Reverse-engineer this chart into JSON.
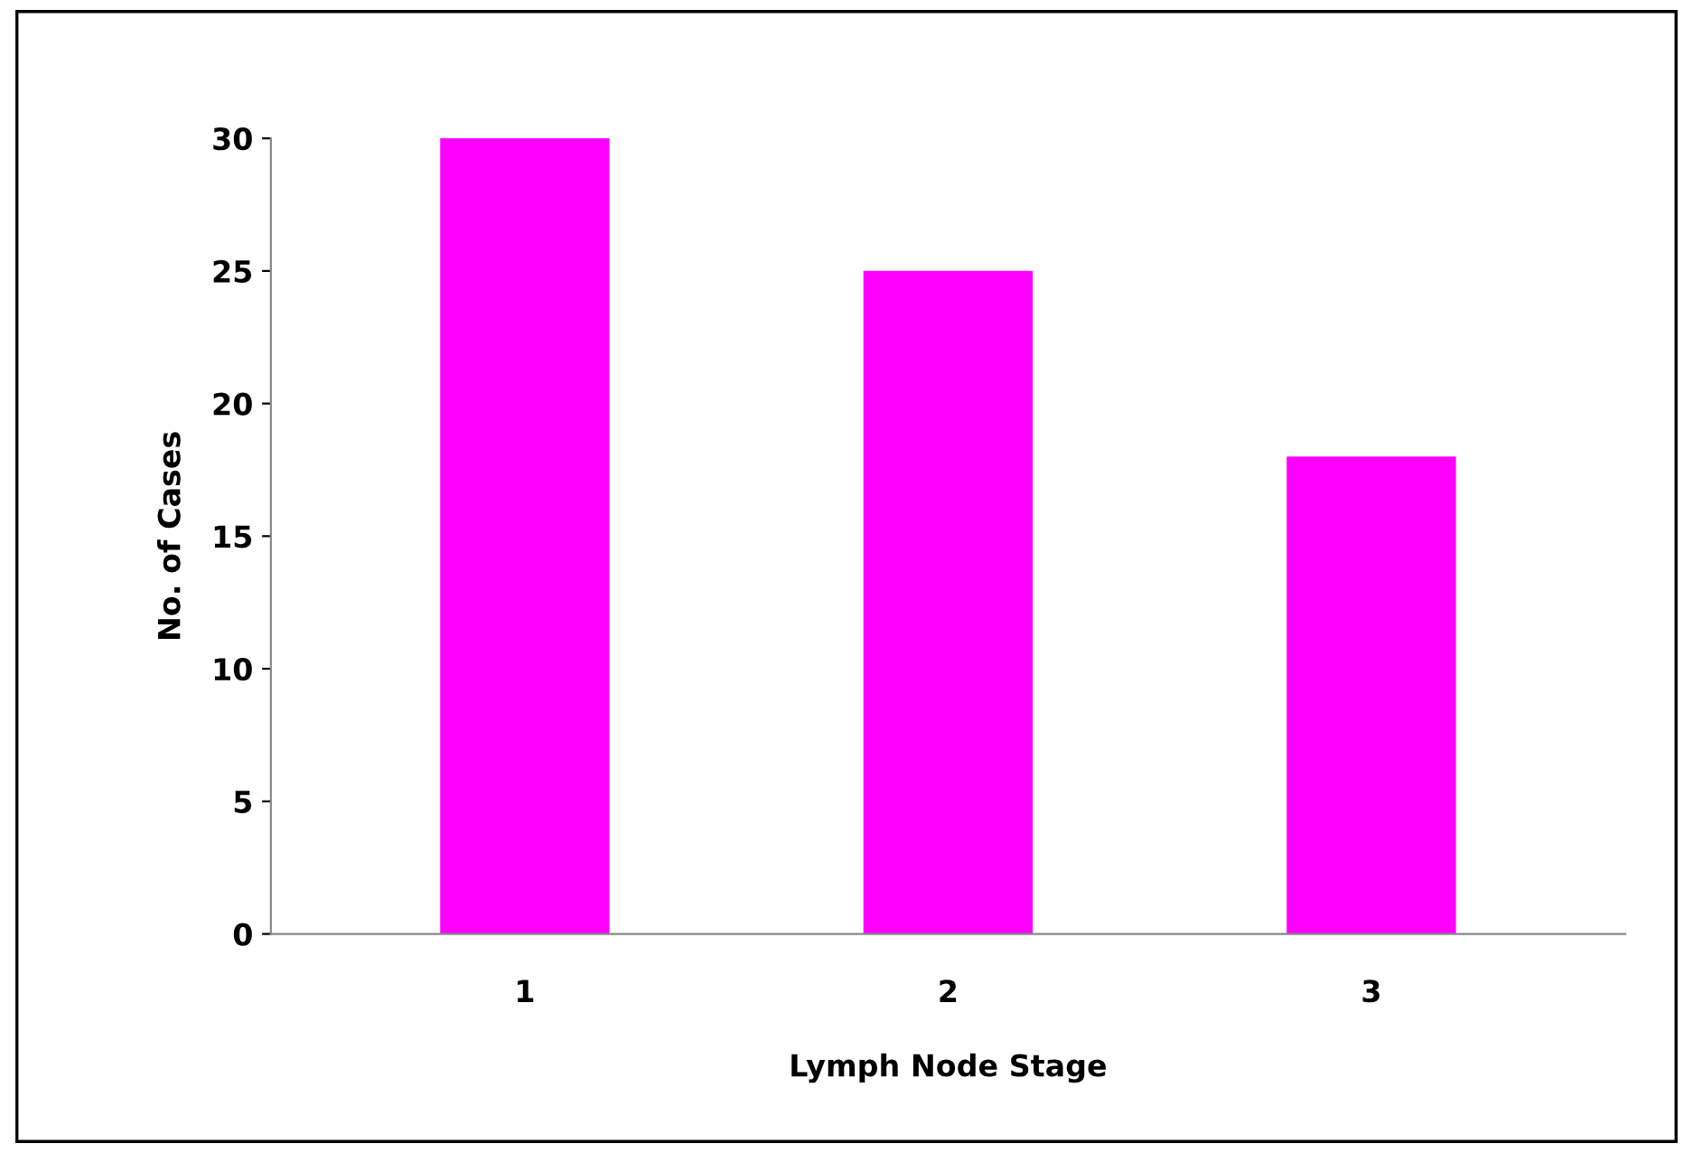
{
  "chart_data": {
    "type": "bar",
    "xlabel": "Lymph Node Stage",
    "ylabel": "No. of Cases",
    "categories": [
      "1",
      "2",
      "3"
    ],
    "values": [
      30,
      25,
      18
    ],
    "color": "#ff00ff",
    "ylim": [
      0,
      30
    ],
    "yticks": [
      0,
      5,
      10,
      15,
      20,
      25,
      30
    ],
    "grid": false
  }
}
